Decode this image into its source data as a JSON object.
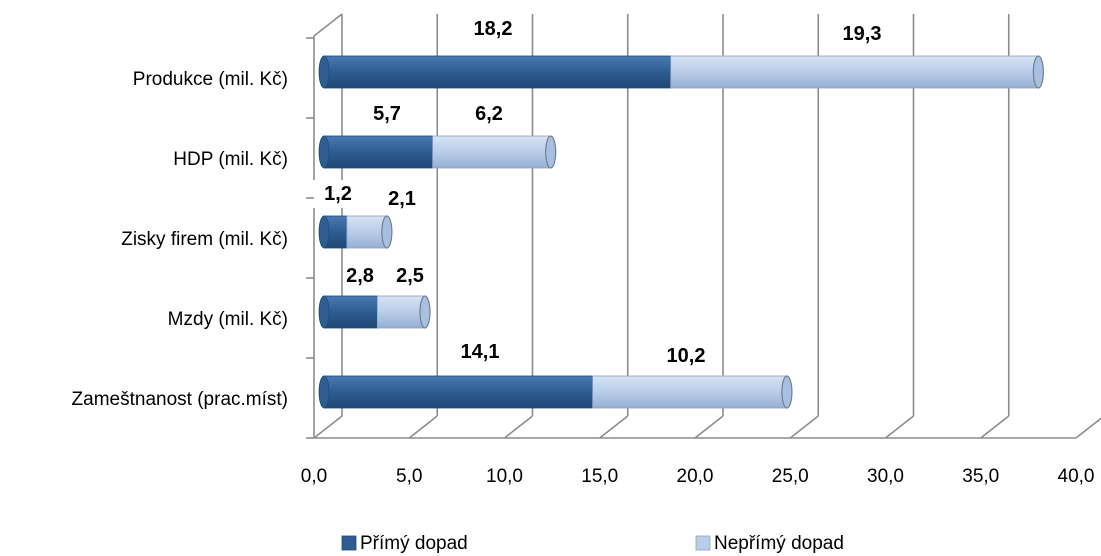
{
  "chart_data": {
    "type": "bar",
    "orientation": "horizontal",
    "stacked": true,
    "style_3d": true,
    "categories": [
      "Produkce (mil. Kč)",
      "HDP (mil. Kč)",
      "Zisky firem (mil. Kč)",
      "Mzdy (mil. Kč)",
      "Zameštnanost (prac.míst)"
    ],
    "series": [
      {
        "name": "Přímý dopad",
        "color": "#2e5d92",
        "values": [
          18.2,
          5.7,
          1.2,
          2.8,
          14.1
        ]
      },
      {
        "name": "Nepřímý dopad",
        "color": "#b9cde8",
        "values": [
          19.3,
          6.2,
          2.1,
          2.5,
          10.2
        ]
      }
    ],
    "data_labels": [
      [
        "18,2",
        "5,7",
        "1,2",
        "2,8",
        "14,1"
      ],
      [
        "19,3",
        "6,2",
        "2,1",
        "2,5",
        "10,2"
      ]
    ],
    "xlim": [
      0,
      40
    ],
    "x_ticks": [
      "0,0",
      "5,0",
      "10,0",
      "15,0",
      "20,0",
      "25,0",
      "30,0",
      "35,0",
      "40,0"
    ],
    "grid": true,
    "legend_position": "bottom",
    "title": "",
    "xlabel": "",
    "ylabel": ""
  }
}
